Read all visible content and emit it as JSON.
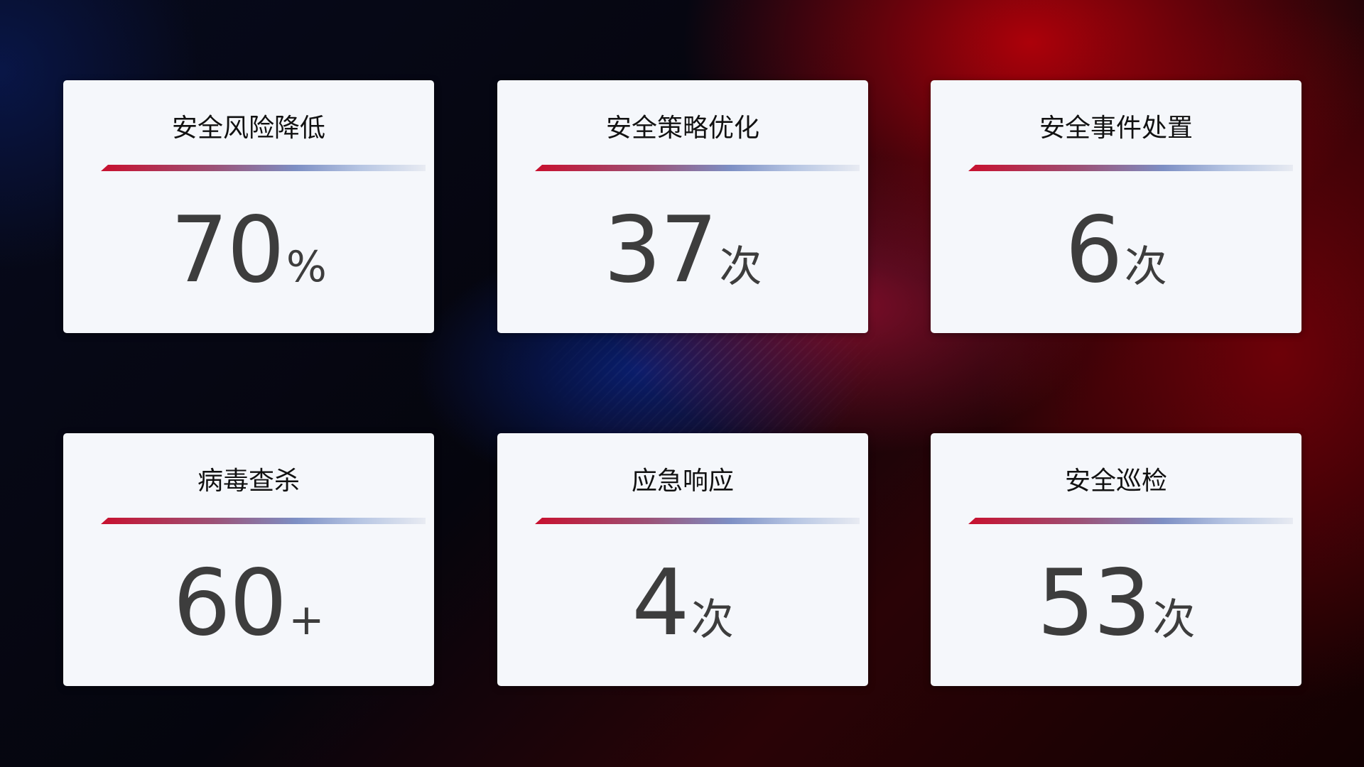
{
  "cards": [
    {
      "title": "安全风险降低",
      "value": "70",
      "unit": "%"
    },
    {
      "title": "安全策略优化",
      "value": "37",
      "unit": "次"
    },
    {
      "title": "安全事件处置",
      "value": "6",
      "unit": "次"
    },
    {
      "title": "病毒查杀",
      "value": "60",
      "unit": "+"
    },
    {
      "title": "应急响应",
      "value": "4",
      "unit": "次"
    },
    {
      "title": "安全巡检",
      "value": "53",
      "unit": "次"
    }
  ],
  "colors": {
    "accent_red": "#c8102e",
    "accent_blue": "#7d8fc4",
    "card_bg": "#f5f7fb",
    "value_text": "#3d3d3d"
  }
}
